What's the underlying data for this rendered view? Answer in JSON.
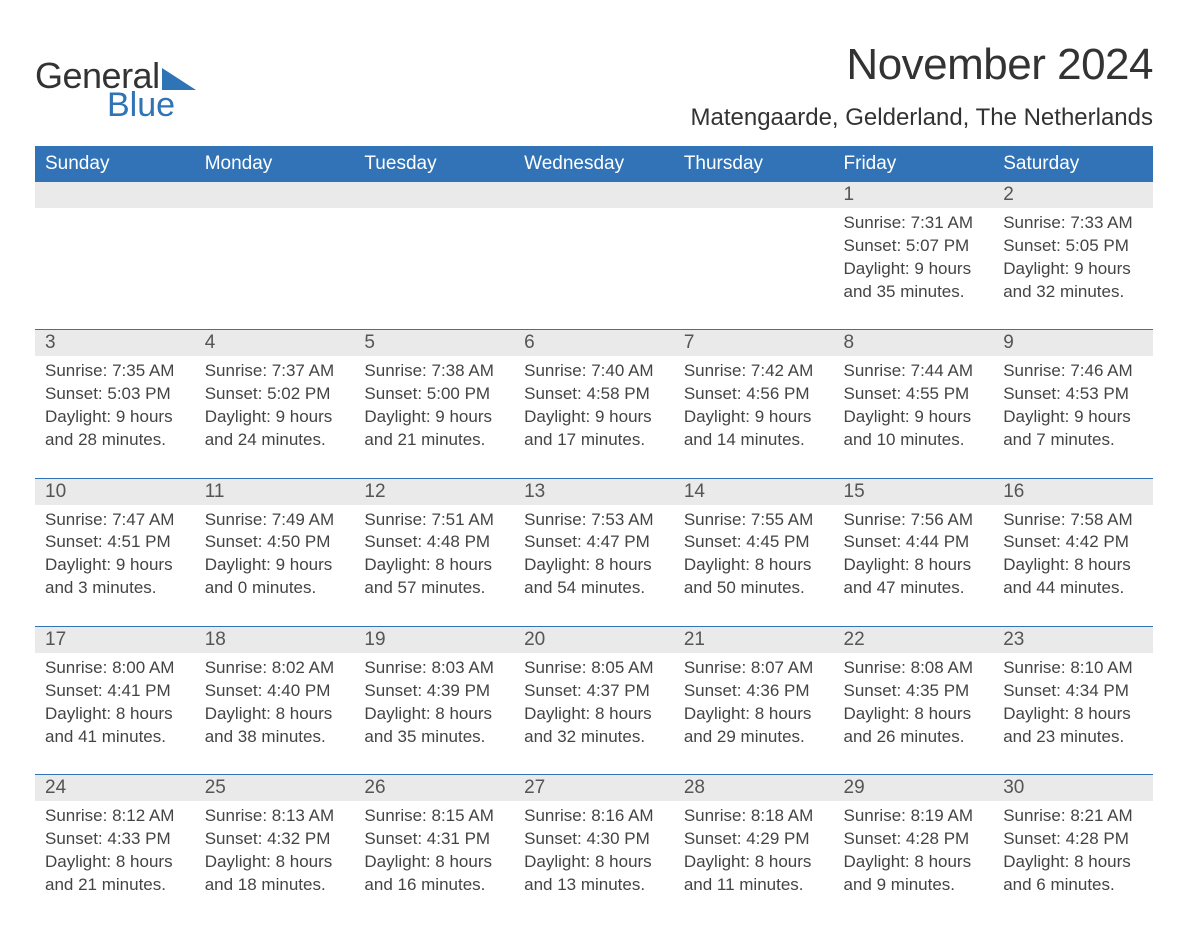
{
  "logo": {
    "text1": "General",
    "text2": "Blue"
  },
  "title": "November 2024",
  "location": "Matengaarde, Gelderland, The Netherlands",
  "colors": {
    "header_bg": "#3173b6",
    "header_text": "#ffffff",
    "daynum_bg": "#eaeaea",
    "rule": "#3173b6",
    "text": "#444444",
    "logo_blue": "#2f74b5"
  },
  "dayHeaders": [
    "Sunday",
    "Monday",
    "Tuesday",
    "Wednesday",
    "Thursday",
    "Friday",
    "Saturday"
  ],
  "weeks": [
    [
      null,
      null,
      null,
      null,
      null,
      {
        "d": "1",
        "sr": "7:31 AM",
        "ss": "5:07 PM",
        "dl1": "9 hours",
        "dl2": "and 35 minutes."
      },
      {
        "d": "2",
        "sr": "7:33 AM",
        "ss": "5:05 PM",
        "dl1": "9 hours",
        "dl2": "and 32 minutes."
      }
    ],
    [
      {
        "d": "3",
        "sr": "7:35 AM",
        "ss": "5:03 PM",
        "dl1": "9 hours",
        "dl2": "and 28 minutes."
      },
      {
        "d": "4",
        "sr": "7:37 AM",
        "ss": "5:02 PM",
        "dl1": "9 hours",
        "dl2": "and 24 minutes."
      },
      {
        "d": "5",
        "sr": "7:38 AM",
        "ss": "5:00 PM",
        "dl1": "9 hours",
        "dl2": "and 21 minutes."
      },
      {
        "d": "6",
        "sr": "7:40 AM",
        "ss": "4:58 PM",
        "dl1": "9 hours",
        "dl2": "and 17 minutes."
      },
      {
        "d": "7",
        "sr": "7:42 AM",
        "ss": "4:56 PM",
        "dl1": "9 hours",
        "dl2": "and 14 minutes."
      },
      {
        "d": "8",
        "sr": "7:44 AM",
        "ss": "4:55 PM",
        "dl1": "9 hours",
        "dl2": "and 10 minutes."
      },
      {
        "d": "9",
        "sr": "7:46 AM",
        "ss": "4:53 PM",
        "dl1": "9 hours",
        "dl2": "and 7 minutes."
      }
    ],
    [
      {
        "d": "10",
        "sr": "7:47 AM",
        "ss": "4:51 PM",
        "dl1": "9 hours",
        "dl2": "and 3 minutes."
      },
      {
        "d": "11",
        "sr": "7:49 AM",
        "ss": "4:50 PM",
        "dl1": "9 hours",
        "dl2": "and 0 minutes."
      },
      {
        "d": "12",
        "sr": "7:51 AM",
        "ss": "4:48 PM",
        "dl1": "8 hours",
        "dl2": "and 57 minutes."
      },
      {
        "d": "13",
        "sr": "7:53 AM",
        "ss": "4:47 PM",
        "dl1": "8 hours",
        "dl2": "and 54 minutes."
      },
      {
        "d": "14",
        "sr": "7:55 AM",
        "ss": "4:45 PM",
        "dl1": "8 hours",
        "dl2": "and 50 minutes."
      },
      {
        "d": "15",
        "sr": "7:56 AM",
        "ss": "4:44 PM",
        "dl1": "8 hours",
        "dl2": "and 47 minutes."
      },
      {
        "d": "16",
        "sr": "7:58 AM",
        "ss": "4:42 PM",
        "dl1": "8 hours",
        "dl2": "and 44 minutes."
      }
    ],
    [
      {
        "d": "17",
        "sr": "8:00 AM",
        "ss": "4:41 PM",
        "dl1": "8 hours",
        "dl2": "and 41 minutes."
      },
      {
        "d": "18",
        "sr": "8:02 AM",
        "ss": "4:40 PM",
        "dl1": "8 hours",
        "dl2": "and 38 minutes."
      },
      {
        "d": "19",
        "sr": "8:03 AM",
        "ss": "4:39 PM",
        "dl1": "8 hours",
        "dl2": "and 35 minutes."
      },
      {
        "d": "20",
        "sr": "8:05 AM",
        "ss": "4:37 PM",
        "dl1": "8 hours",
        "dl2": "and 32 minutes."
      },
      {
        "d": "21",
        "sr": "8:07 AM",
        "ss": "4:36 PM",
        "dl1": "8 hours",
        "dl2": "and 29 minutes."
      },
      {
        "d": "22",
        "sr": "8:08 AM",
        "ss": "4:35 PM",
        "dl1": "8 hours",
        "dl2": "and 26 minutes."
      },
      {
        "d": "23",
        "sr": "8:10 AM",
        "ss": "4:34 PM",
        "dl1": "8 hours",
        "dl2": "and 23 minutes."
      }
    ],
    [
      {
        "d": "24",
        "sr": "8:12 AM",
        "ss": "4:33 PM",
        "dl1": "8 hours",
        "dl2": "and 21 minutes."
      },
      {
        "d": "25",
        "sr": "8:13 AM",
        "ss": "4:32 PM",
        "dl1": "8 hours",
        "dl2": "and 18 minutes."
      },
      {
        "d": "26",
        "sr": "8:15 AM",
        "ss": "4:31 PM",
        "dl1": "8 hours",
        "dl2": "and 16 minutes."
      },
      {
        "d": "27",
        "sr": "8:16 AM",
        "ss": "4:30 PM",
        "dl1": "8 hours",
        "dl2": "and 13 minutes."
      },
      {
        "d": "28",
        "sr": "8:18 AM",
        "ss": "4:29 PM",
        "dl1": "8 hours",
        "dl2": "and 11 minutes."
      },
      {
        "d": "29",
        "sr": "8:19 AM",
        "ss": "4:28 PM",
        "dl1": "8 hours",
        "dl2": "and 9 minutes."
      },
      {
        "d": "30",
        "sr": "8:21 AM",
        "ss": "4:28 PM",
        "dl1": "8 hours",
        "dl2": "and 6 minutes."
      }
    ]
  ],
  "labels": {
    "sunrise": "Sunrise: ",
    "sunset": "Sunset: ",
    "daylight": "Daylight: "
  }
}
